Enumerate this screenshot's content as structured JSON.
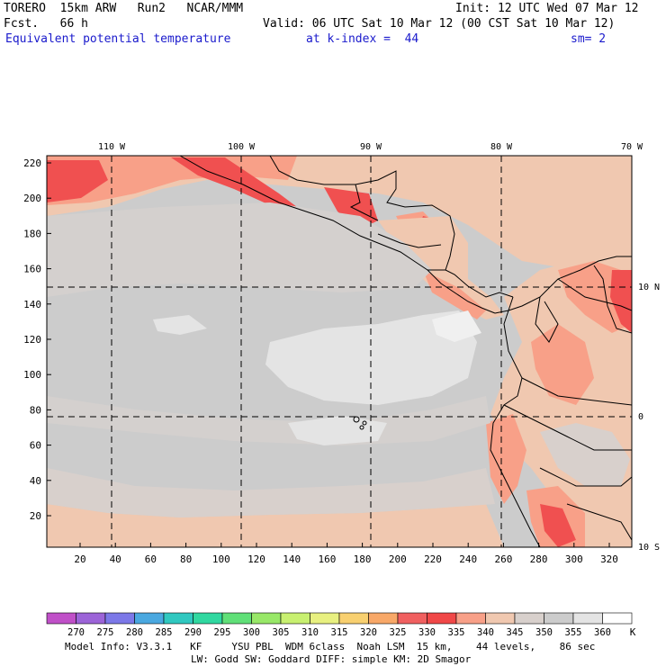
{
  "header": {
    "model": "TORERO  15km ARW   Run2   NCAR/MMM",
    "init": "Init: 12 UTC Wed 07 Mar 12",
    "fcst": "Fcst.   66 h",
    "valid": "Valid: 06 UTC Sat 10 Mar 12 (00 CST Sat 10 Mar 12)",
    "field": "Equivalent potential temperature",
    "level": "at k-index =  44",
    "smooth": "sm= 2"
  },
  "map": {
    "top_lon_labels": [
      "110 W",
      "100 W",
      "90 W",
      "80 W",
      "70 W"
    ],
    "left_y_labels": [
      "220",
      "200",
      "180",
      "160",
      "140",
      "120",
      "100",
      "80",
      "60",
      "40",
      "20"
    ],
    "bottom_x_labels": [
      "20",
      "40",
      "60",
      "80",
      "100",
      "120",
      "140",
      "160",
      "180",
      "200",
      "220",
      "240",
      "260",
      "280",
      "300",
      "320"
    ],
    "right_lat_labels": [
      "10 N",
      "0",
      "10 S"
    ]
  },
  "colorbar": {
    "labels": [
      "270",
      "275",
      "280",
      "285",
      "290",
      "295",
      "300",
      "305",
      "310",
      "315",
      "320",
      "325",
      "330",
      "335",
      "340",
      "345",
      "350",
      "355",
      "360"
    ],
    "unit": "K",
    "colors": [
      "#c050c8",
      "#9c64d8",
      "#7c78e8",
      "#4aa8e0",
      "#30c8c0",
      "#30d8a0",
      "#60e078",
      "#98e868",
      "#c8f070",
      "#e8f080",
      "#f8d070",
      "#f8a868",
      "#f06060",
      "#f04848",
      "#f8a088",
      "#f0c8b0",
      "#d8d0cc",
      "#cccccc",
      "#e4e4e4",
      "#ffffff"
    ]
  },
  "footer": {
    "line1": "Model Info: V3.3.1   KF     YSU PBL  WDM 6class  Noah LSM  15 km,    44 levels,    86 sec",
    "line2": "LW: Godd SW: Goddard DIFF: simple KM: 2D Smagor"
  }
}
